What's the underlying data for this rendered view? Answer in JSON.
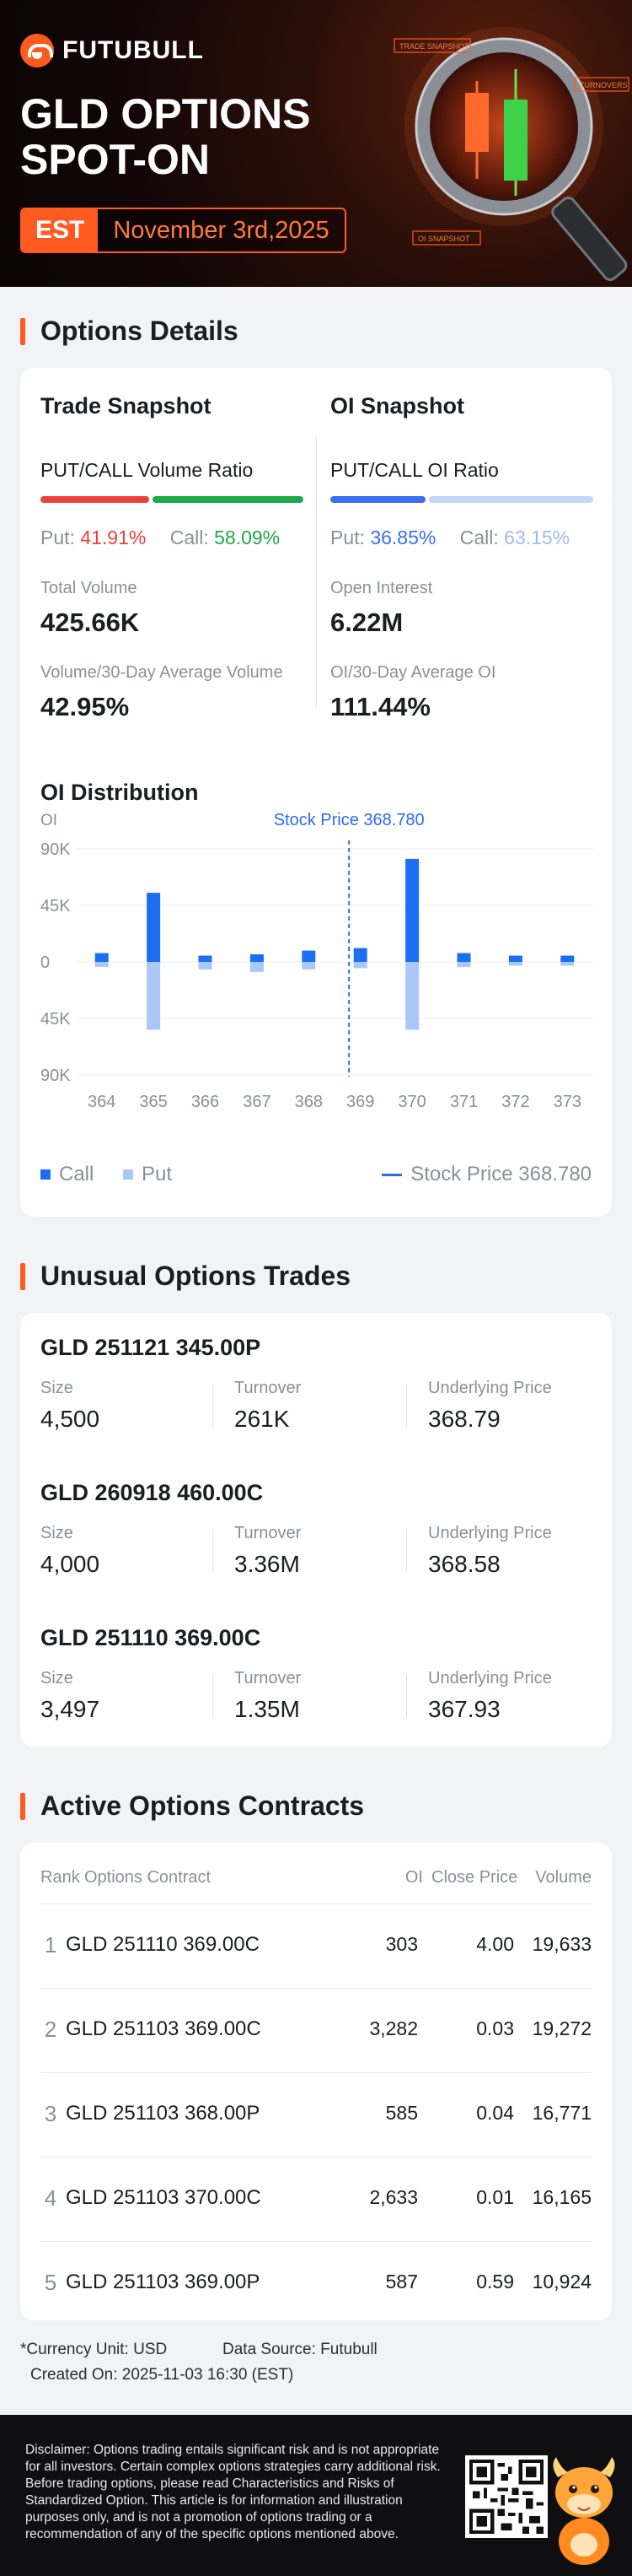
{
  "brand": {
    "name": "FUTUBULL",
    "accent": "#ff5a1f"
  },
  "hero": {
    "title_line1": "GLD OPTIONS",
    "title_line2": "SPOT-ON",
    "tz": "EST",
    "date": "November 3rd,2025",
    "tags": [
      "TRADE SNAPSHOT",
      "TURNOVERS",
      "OI SNAPSHOT"
    ]
  },
  "options_details": {
    "title": "Options Details",
    "trade": {
      "title": "Trade Snapshot",
      "ratio_label": "PUT/CALL Volume Ratio",
      "put_label": "Put:",
      "put_value": "41.91%",
      "put_fraction": 0.4191,
      "call_label": "Call:",
      "call_value": "58.09%",
      "stat1_label": "Total Volume",
      "stat1_value": "425.66K",
      "stat2_label": "Volume/30-Day Average Volume",
      "stat2_value": "42.95%"
    },
    "oi": {
      "title": "OI Snapshot",
      "ratio_label": "PUT/CALL OI Ratio",
      "put_label": "Put:",
      "put_value": "36.85%",
      "put_fraction": 0.3685,
      "call_label": "Call:",
      "call_value": "63.15%",
      "stat1_label": "Open Interest",
      "stat1_value": "6.22M",
      "stat2_label": "OI/30-Day Average OI",
      "stat2_value": "111.44%"
    },
    "colors": {
      "put_red": "#e8433a",
      "call_green": "#1fa84a",
      "oi_put": "#3b6ff0",
      "oi_call": "#c6d6fb"
    }
  },
  "chart_data": {
    "type": "bar",
    "title": "OI Distribution",
    "ylabel": "OI",
    "categories": [
      "364",
      "365",
      "366",
      "367",
      "368",
      "369",
      "370",
      "371",
      "372",
      "373"
    ],
    "y_ticks": [
      "90K",
      "45K",
      "0",
      "45K",
      "90K"
    ],
    "ylim": [
      -90000,
      90000
    ],
    "series": [
      {
        "name": "Call",
        "color": "#1c6ef2",
        "values": [
          7000,
          55000,
          5000,
          6000,
          9000,
          11000,
          82000,
          7000,
          5000,
          5000
        ]
      },
      {
        "name": "Put",
        "color": "#a9c7f7",
        "values": [
          -4000,
          -54000,
          -6000,
          -8000,
          -6000,
          -5000,
          -54000,
          -4000,
          -3000,
          -3000
        ]
      }
    ],
    "stock_price_label": "Stock Price 368.780",
    "stock_price": 368.78,
    "legend_position": "bottom"
  },
  "unusual": {
    "title": "Unusual Options Trades",
    "labels": {
      "size": "Size",
      "turnover": "Turnover",
      "underlying": "Underlying Price"
    },
    "trades": [
      {
        "name": "GLD 251121 345.00P",
        "size": "4,500",
        "turnover": "261K",
        "underlying": "368.79"
      },
      {
        "name": "GLD 260918 460.00C",
        "size": "4,000",
        "turnover": "3.36M",
        "underlying": "368.58"
      },
      {
        "name": "GLD 251110 369.00C",
        "size": "3,497",
        "turnover": "1.35M",
        "underlying": "367.93"
      }
    ]
  },
  "active": {
    "title": "Active Options Contracts",
    "headers": {
      "rank": "Rank",
      "contract": "Options Contract",
      "oi": "OI",
      "close": "Close Price",
      "volume": "Volume"
    },
    "rows": [
      {
        "rank": "1",
        "contract": "GLD 251110 369.00C",
        "oi": "303",
        "close": "4.00",
        "volume": "19,633"
      },
      {
        "rank": "2",
        "contract": "GLD 251103 369.00C",
        "oi": "3,282",
        "close": "0.03",
        "volume": "19,272"
      },
      {
        "rank": "3",
        "contract": "GLD 251103 368.00P",
        "oi": "585",
        "close": "0.04",
        "volume": "16,771"
      },
      {
        "rank": "4",
        "contract": "GLD 251103 370.00C",
        "oi": "2,633",
        "close": "0.01",
        "volume": "16,165"
      },
      {
        "rank": "5",
        "contract": "GLD 251103 369.00P",
        "oi": "587",
        "close": "0.59",
        "volume": "10,924"
      }
    ]
  },
  "footer": {
    "currency": "*Currency Unit: USD",
    "source": "Data Source: Futubull",
    "created": "Created On: 2025-11-03 16:30 (EST)",
    "disclaimer": "Disclaimer: Options trading entails significant risk and is not appropriate for all investors. Certain complex options strategies carry additional risk. Before trading options, please read Characteristics and Risks of Standardized Option. This article is for information and illustration purposes only, and is not a promotion of options trading or a recommendation of any of the specific options mentioned above."
  }
}
